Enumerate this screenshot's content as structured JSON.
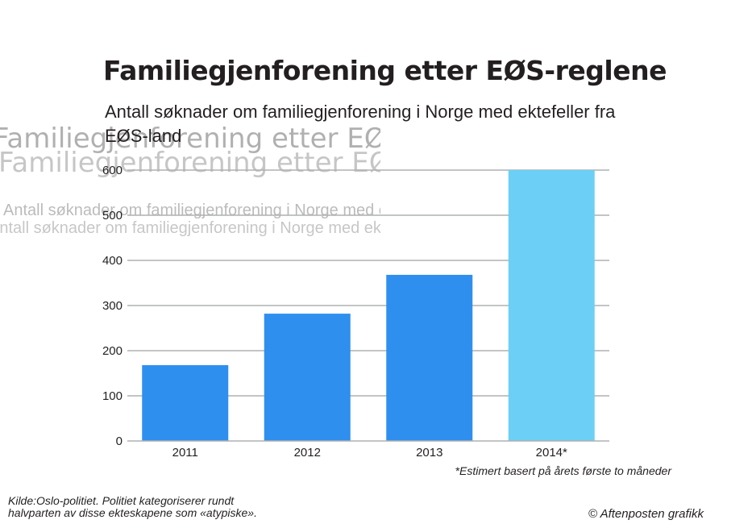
{
  "header": {
    "title": "Familiegjenforening etter EØS-reglene",
    "subtitle": "Antall søknader om familiegjenforening i Norge med ektefeller fra EØS-land"
  },
  "chart_data": {
    "type": "bar",
    "title": "Familiegjenforening etter EØS-reglene",
    "subtitle": "Antall søknader om familiegjenforening i Norge med ektefeller fra EØS-land",
    "categories": [
      "2011",
      "2012",
      "2013",
      "2014*"
    ],
    "values": [
      168,
      282,
      368,
      600
    ],
    "ylim": [
      0,
      600
    ],
    "yticks": [
      0,
      100,
      200,
      300,
      400,
      500,
      600
    ],
    "ytick_labels": [
      "0",
      "100",
      "200",
      "300",
      "400",
      "500",
      "600"
    ],
    "grid": true,
    "legend": "none",
    "colors": {
      "actual": "#2e8fef",
      "estimated": "#6ccff6",
      "grid": "#aeb0b2",
      "text": "#231f20"
    },
    "bar_colors": [
      "actual",
      "actual",
      "actual",
      "estimated"
    ],
    "annotation": "*Estimert basert på årets første to måneder"
  },
  "footer": {
    "source_line1": "Kilde:Oslo-politiet. Politiet kategoriserer rundt",
    "source_line2": "halvparten av disse ekteskapene som «atypiske».",
    "credit": "© Aftenposten grafikk"
  }
}
